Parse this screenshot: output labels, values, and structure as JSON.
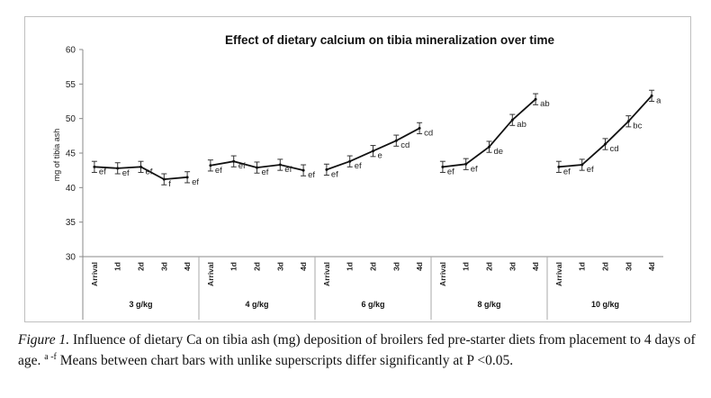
{
  "chart_data": {
    "type": "line",
    "title": "Effect of dietary calcium on tibia mineralization over time",
    "ylabel": "mg of tibia ash",
    "xlabel": "",
    "ylim": [
      30,
      60
    ],
    "yticks": [
      30,
      35,
      40,
      45,
      50,
      55,
      60
    ],
    "categories": [
      "Arrival",
      "1d",
      "2d",
      "3d",
      "4d"
    ],
    "groups": [
      {
        "name": "3 g/kg",
        "values": [
          43.0,
          42.8,
          43.0,
          41.2,
          41.5
        ],
        "letters": [
          "ef",
          "ef",
          "ef",
          "f",
          "ef"
        ]
      },
      {
        "name": "4 g/kg",
        "values": [
          43.2,
          43.8,
          42.9,
          43.3,
          42.5
        ],
        "letters": [
          "ef",
          "ef",
          "ef",
          "ef",
          "ef"
        ]
      },
      {
        "name": "6 g/kg",
        "values": [
          42.6,
          43.8,
          45.3,
          46.8,
          48.6
        ],
        "letters": [
          "ef",
          "ef",
          "e",
          "cd",
          "cd"
        ]
      },
      {
        "name": "8 g/kg",
        "values": [
          43.0,
          43.4,
          45.9,
          49.8,
          52.8
        ],
        "letters": [
          "ef",
          "ef",
          "de",
          "ab",
          "ab"
        ]
      },
      {
        "name": "10 g/kg",
        "values": [
          43.0,
          43.3,
          46.3,
          49.6,
          53.3
        ],
        "letters": [
          "ef",
          "ef",
          "cd",
          "bc",
          "a"
        ]
      }
    ],
    "error_bar": 0.8,
    "grid": false,
    "legend": "none"
  },
  "caption": {
    "figure_label": "Figure 1.",
    "text_part1": "Influence of dietary Ca on tibia ash (mg) deposition of broilers fed pre-starter diets from placement to 4 days of age.",
    "superscript": "a -f",
    "text_part2": "Means between chart bars with unlike superscripts differ significantly at P <0.05."
  }
}
